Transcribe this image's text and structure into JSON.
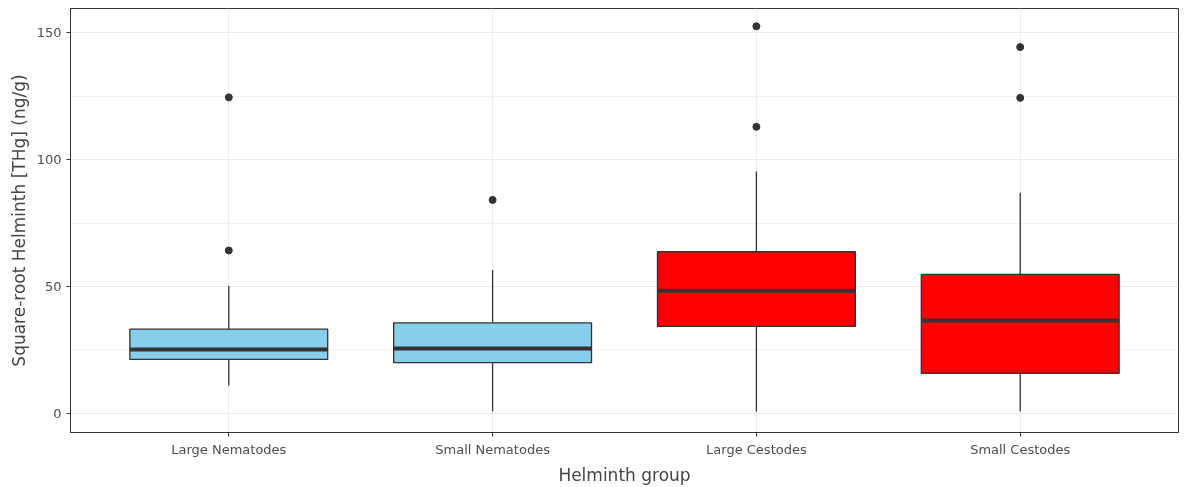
{
  "chart_data": {
    "type": "box",
    "xlabel": "Helminth group",
    "ylabel": "Square-root Helminth [THg] (ng/g)",
    "categories": [
      "Large Nematodes",
      "Small Nematodes",
      "Large Cestodes",
      "Small Cestodes"
    ],
    "colors": [
      "#87ceeb",
      "#87ceeb",
      "#ff0000",
      "#ff0000"
    ],
    "boxes": [
      {
        "low": 11,
        "q1": 21.3,
        "median": 25.2,
        "q3": 33.2,
        "high": 50.2,
        "outliers": [
          64.2,
          124.5
        ]
      },
      {
        "low": 0.9,
        "q1": 20,
        "median": 25.6,
        "q3": 35.7,
        "high": 56.5,
        "outliers": [
          84.1
        ]
      },
      {
        "low": 0.8,
        "q1": 34.3,
        "median": 48.3,
        "q3": 63.7,
        "high": 95.3,
        "outliers": [
          112.9,
          152.5
        ]
      },
      {
        "low": 0.8,
        "q1": 15.8,
        "median": 36.6,
        "q3": 54.8,
        "high": 86.9,
        "outliers": [
          124.3,
          144.3
        ]
      }
    ],
    "ylim": [
      -7.5,
      159.5
    ],
    "yticks": [
      0,
      50,
      100,
      150
    ],
    "grid": true
  }
}
